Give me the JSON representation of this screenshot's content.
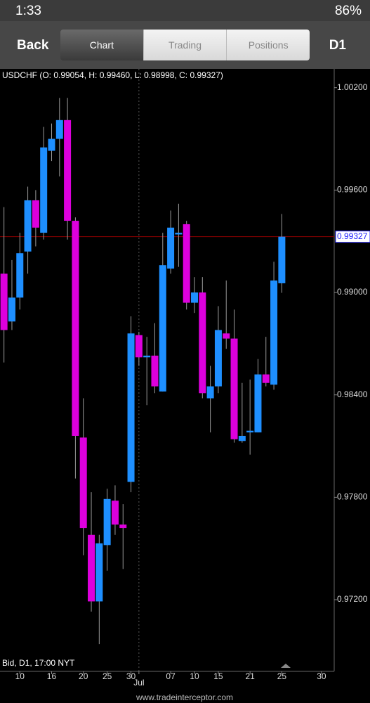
{
  "status_bar": {
    "time": "1:33",
    "battery": "86%"
  },
  "nav": {
    "back": "Back",
    "tabs": [
      "Chart",
      "Trading",
      "Positions"
    ],
    "timeframe": "D1"
  },
  "chart_data": {
    "type": "candlestick",
    "title": "USDCHF (O: 0.99054, H: 0.99460, L: 0.98998, C: 0.99327)",
    "footnote": "Bid, D1, 17:00 NYT",
    "up_color": "#1e8fff",
    "down_color": "#dd00dd",
    "wick_color": "#9a9a9a",
    "x": [
      0,
      1,
      2,
      3,
      4,
      5,
      6,
      7,
      8,
      9,
      10,
      11,
      12,
      13,
      14,
      15,
      16,
      17,
      18,
      19,
      20,
      21,
      22,
      23,
      24,
      25,
      26,
      27,
      28,
      29,
      30,
      31,
      32,
      33,
      34,
      35
    ],
    "open": [
      0.9911,
      0.9883,
      0.9897,
      0.9924,
      0.9954,
      0.9935,
      0.9983,
      0.999,
      1.0001,
      0.9942,
      0.9815,
      0.9758,
      0.9719,
      0.9752,
      0.9778,
      0.9764,
      0.9789,
      0.9875,
      0.9862,
      0.9863,
      0.9842,
      0.9914,
      0.9934,
      0.994,
      0.9894,
      0.99,
      0.9838,
      0.9845,
      0.9876,
      0.9873,
      0.9813,
      0.9818,
      0.9818,
      0.9852,
      0.9846,
      0.99054
    ],
    "high": [
      0.995,
      0.9919,
      0.9935,
      0.9962,
      0.996,
      0.9997,
      0.9999,
      1.0014,
      1.0014,
      0.9944,
      0.9838,
      0.9783,
      0.9758,
      0.9785,
      0.9787,
      0.9776,
      0.9886,
      0.9877,
      0.9874,
      0.9882,
      0.9935,
      0.9948,
      0.9952,
      0.9942,
      0.9909,
      0.9909,
      0.9857,
      0.9892,
      0.9907,
      0.989,
      0.9847,
      0.9849,
      0.9861,
      0.9874,
      0.9918,
      0.9946
    ],
    "low": [
      0.9859,
      0.9878,
      0.989,
      0.9911,
      0.9927,
      0.9931,
      0.9977,
      0.9968,
      0.9931,
      0.9791,
      0.9746,
      0.9713,
      0.9694,
      0.9737,
      0.9758,
      0.9738,
      0.9783,
      0.9857,
      0.9834,
      0.9841,
      0.9842,
      0.9911,
      0.9915,
      0.989,
      0.9888,
      0.9838,
      0.9818,
      0.9841,
      0.9867,
      0.9812,
      0.9812,
      0.9805,
      0.9818,
      0.9845,
      0.9843,
      0.98998
    ],
    "close": [
      0.9878,
      0.9897,
      0.9923,
      0.9954,
      0.9938,
      0.9985,
      0.999,
      1.0001,
      0.9942,
      0.9816,
      0.9762,
      0.9719,
      0.9753,
      0.9779,
      0.9764,
      0.9762,
      0.9876,
      0.9862,
      0.9863,
      0.9845,
      0.9916,
      0.9938,
      0.9935,
      0.9894,
      0.99,
      0.9841,
      0.9845,
      0.9878,
      0.9873,
      0.9814,
      0.9816,
      0.9819,
      0.9852,
      0.9847,
      0.9907,
      0.99327
    ],
    "xlim": [
      -0.5,
      41.6
    ],
    "xticks": [
      {
        "value": 2,
        "label": "10"
      },
      {
        "value": 6,
        "label": "16"
      },
      {
        "value": 10,
        "label": "20"
      },
      {
        "value": 13,
        "label": "25"
      },
      {
        "value": 16,
        "label": "30"
      },
      {
        "value": 17,
        "label": "Jul"
      },
      {
        "value": 21,
        "label": "07"
      },
      {
        "value": 24,
        "label": "10"
      },
      {
        "value": 27,
        "label": "15"
      },
      {
        "value": 31,
        "label": "21"
      },
      {
        "value": 35,
        "label": "25"
      },
      {
        "value": 40,
        "label": "30"
      }
    ],
    "ylim": [
      0.9678,
      1.0031
    ],
    "yticks": [
      {
        "value": 1.002,
        "label": "1.00200"
      },
      {
        "value": 0.996,
        "label": "0.99600"
      },
      {
        "value": 0.99,
        "label": "0.99000"
      },
      {
        "value": 0.984,
        "label": "0.98400"
      },
      {
        "value": 0.978,
        "label": "0.97800"
      },
      {
        "value": 0.972,
        "label": "0.97200"
      }
    ],
    "price_line": {
      "value": 0.99327,
      "label": "0.99327",
      "color": "#8b0000"
    }
  },
  "footer": "www.tradeinterceptor.com"
}
